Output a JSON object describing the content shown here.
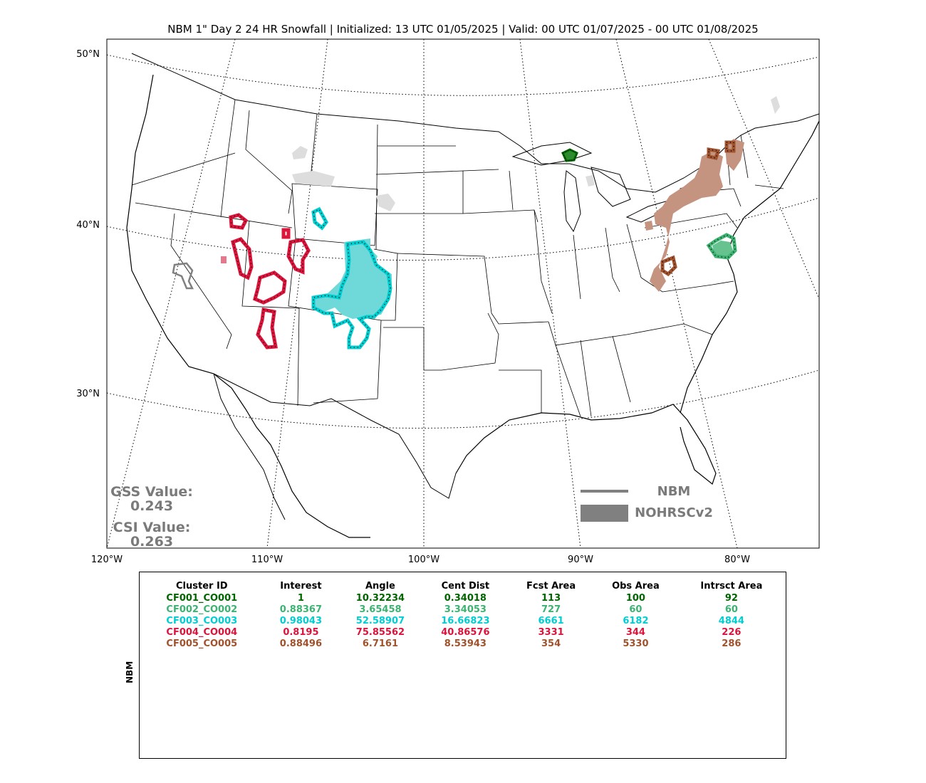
{
  "title": "NBM 1\" Day 2 24 HR Snowfall | Initialized: 13 UTC 01/05/2025 | Valid: 00 UTC 01/07/2025 - 00 UTC 01/08/2025",
  "lat_labels": [
    "50°N",
    "40°N",
    "30°N"
  ],
  "lon_labels": [
    "120°W",
    "110°W",
    "100°W",
    "90°W",
    "80°W"
  ],
  "scores": {
    "gss_label": "GSS Value:",
    "gss_value": "0.243",
    "csi_label": "CSI Value:",
    "csi_value": "0.263"
  },
  "legend": {
    "forecast_label": "NBM",
    "observed_label": "NOHRSCv2",
    "color": "#808080"
  },
  "table": {
    "side_label": "NBM",
    "headers": [
      "Cluster ID",
      "Interest",
      "Angle",
      "Cent Dist",
      "Fcst Area",
      "Obs Area",
      "Intrsct Area"
    ],
    "rows": [
      {
        "color": "#006400",
        "cells": [
          "CF001_CO001",
          "1",
          "10.32234",
          "0.34018",
          "113",
          "100",
          "92"
        ]
      },
      {
        "color": "#3cb371",
        "cells": [
          "CF002_CO002",
          "0.88367",
          "3.65458",
          "3.34053",
          "727",
          "60",
          "60"
        ]
      },
      {
        "color": "#00ced1",
        "cells": [
          "CF003_CO003",
          "0.98043",
          "52.58907",
          "16.66823",
          "6661",
          "6182",
          "4844"
        ]
      },
      {
        "color": "#dc143c",
        "cells": [
          "CF004_CO004",
          "0.8195",
          "75.85562",
          "40.86576",
          "3331",
          "344",
          "226"
        ]
      },
      {
        "color": "#a0522d",
        "cells": [
          "CF005_CO005",
          "0.88496",
          "6.7161",
          "8.53943",
          "354",
          "5330",
          "286"
        ]
      }
    ]
  },
  "clusters": {
    "cf001": {
      "fill": "#2e8b2e",
      "stroke": "#006400"
    },
    "cf002": {
      "fill": "#66c28f",
      "stroke": "#3cb371"
    },
    "cf003": {
      "fill": "#6fd9d9",
      "stroke": "#00ced1"
    },
    "cf004": {
      "fill": "#e07a8c",
      "stroke": "#dc143c"
    },
    "cf005": {
      "fill": "#c49480",
      "stroke": "#a0522d"
    },
    "unmatched_obs": "#dddddd"
  }
}
